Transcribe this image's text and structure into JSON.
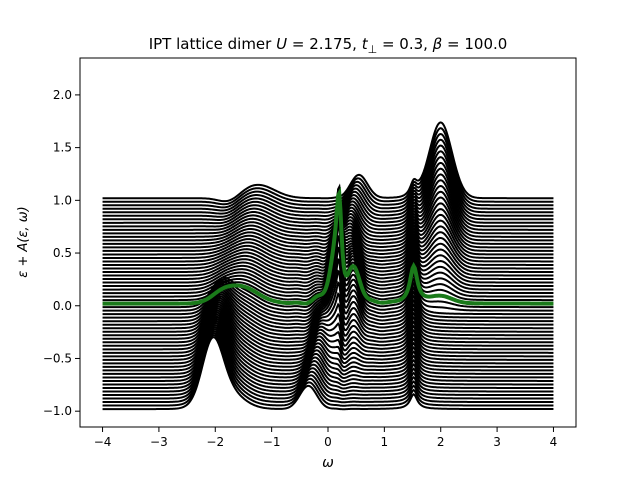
{
  "chart_data": {
    "type": "line",
    "title": "IPT lattice dimer U = 2.175, t⊥ = 0.3, β = 100.0",
    "title_parts": {
      "prefix": "IPT lattice dimer ",
      "U_label": "U",
      "U_value": " = 2.175, ",
      "t_label": "t",
      "t_sub": "⊥",
      "t_value": " = 0.3, ",
      "beta_label": "β",
      "beta_value": " = 100.0"
    },
    "xlabel": "ω",
    "ylabel": "ε + A(ε, ω)",
    "xlim": [
      -4.4,
      4.4
    ],
    "ylim": [
      -1.15,
      2.35
    ],
    "xticks": [
      -4,
      -3,
      -2,
      -1,
      0,
      1,
      2,
      3,
      4
    ],
    "yticks": [
      -1.0,
      -0.5,
      0.0,
      0.5,
      1.0,
      1.5,
      2.0
    ],
    "xtick_labels": [
      "−4",
      "−3",
      "−2",
      "−1",
      "0",
      "1",
      "2",
      "3",
      "4"
    ],
    "ytick_labels": [
      "−1.0",
      "−0.5",
      "0.0",
      "0.5",
      "1.0",
      "1.5",
      "2.0"
    ],
    "grid": false,
    "series_description": "Stacked spectral functions for energies ε from -1.0 to 1.0 (offset by ε), black lines; ε = 0 highlighted in green",
    "eps_range": [
      -1.0,
      1.0
    ],
    "n_curves": 61,
    "omega_range": [
      -4.0,
      4.0
    ],
    "base_color": "#000000",
    "highlight_color": "#1a7a1a",
    "highlight_eps": 0.0
  }
}
